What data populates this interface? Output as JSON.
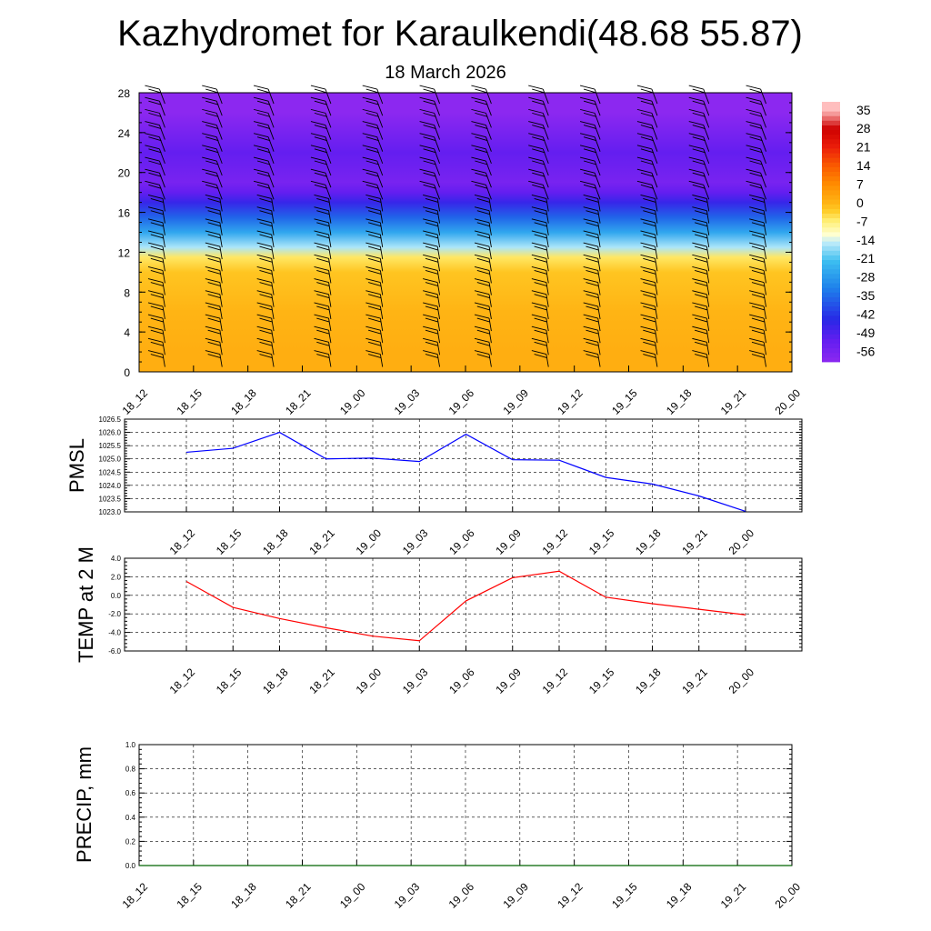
{
  "header": {
    "title": "Kazhydromet for Karaulkendi(48.68 55.87)",
    "subtitle": "18 March 2026"
  },
  "colors": {
    "pmsl_line": "#0000ff",
    "temp_line": "#ff0000",
    "precip_line": "#006400",
    "grid": "#000000",
    "barb": "#000000"
  },
  "time_labels": [
    "18_12",
    "18_15",
    "18_18",
    "18_21",
    "19_00",
    "19_03",
    "19_06",
    "19_09",
    "19_12",
    "19_15",
    "19_18",
    "19_21",
    "20_00"
  ],
  "chart_data": [
    {
      "id": "cross_section",
      "type": "heatmap",
      "x": [
        "18_12",
        "18_15",
        "18_18",
        "18_21",
        "19_00",
        "19_03",
        "19_06",
        "19_09",
        "19_12",
        "19_15",
        "19_18",
        "19_21",
        "20_00"
      ],
      "y_ticks": [
        0,
        4,
        8,
        12,
        16,
        20,
        24,
        28
      ],
      "ylim": [
        0,
        28
      ],
      "colorbar_labels": [
        "35",
        "28",
        "21",
        "14",
        "7",
        "0",
        "-7",
        "-14",
        "-21",
        "-28",
        "-35",
        "-42",
        "-49",
        "-56"
      ],
      "colorbar_range": [
        -60,
        38
      ],
      "temperature_profile": [
        {
          "level": 0,
          "value": 1
        },
        {
          "level": 2,
          "value": 1
        },
        {
          "level": 6,
          "value": 0
        },
        {
          "level": 10,
          "value": -2
        },
        {
          "level": 11.5,
          "value": -6
        },
        {
          "level": 12.5,
          "value": -16
        },
        {
          "level": 14,
          "value": -26
        },
        {
          "level": 15.5,
          "value": -36
        },
        {
          "level": 17,
          "value": -46
        },
        {
          "level": 18,
          "value": -52
        },
        {
          "level": 19,
          "value": -56
        },
        {
          "level": 22,
          "value": -52
        },
        {
          "level": 24,
          "value": -56
        },
        {
          "level": 26,
          "value": -60
        },
        {
          "level": 28,
          "value": -60
        }
      ],
      "wind_barbs": "westerly to northwesterly at all levels"
    },
    {
      "id": "pmsl",
      "type": "line",
      "ylabel": "PMSL",
      "x": [
        "18_12",
        "18_15",
        "18_18",
        "18_21",
        "19_00",
        "19_03",
        "19_06",
        "19_09",
        "19_12",
        "19_15",
        "19_18",
        "19_21",
        "20_00"
      ],
      "ylim": [
        1023.0,
        1026.5
      ],
      "y_ticks": [
        "1023.0",
        "1023.5",
        "1024.0",
        "1024.5",
        "1025.0",
        "1025.5",
        "1026.0",
        "1026.5"
      ],
      "series": [
        {
          "values": [
            1025.25,
            1025.4,
            1026.0,
            1025.0,
            1025.03,
            1024.9,
            1025.93,
            1024.97,
            1024.95,
            1024.3,
            1024.05,
            1023.6,
            1023.02
          ]
        }
      ]
    },
    {
      "id": "temp",
      "type": "line",
      "ylabel": "TEMP at 2 M",
      "x": [
        "18_12",
        "18_15",
        "18_18",
        "18_21",
        "19_00",
        "19_03",
        "19_06",
        "19_09",
        "19_12",
        "19_15",
        "19_18",
        "19_21",
        "20_00"
      ],
      "ylim": [
        -6.0,
        4.0
      ],
      "y_ticks": [
        "-6.0",
        "-4.0",
        "-2.0",
        "0.0",
        "2.0",
        "4.0"
      ],
      "series": [
        {
          "values": [
            1.5,
            -1.3,
            -2.5,
            -3.5,
            -4.4,
            -4.9,
            -0.6,
            1.9,
            2.6,
            -0.2,
            -0.9,
            -1.5,
            -2.1
          ]
        }
      ]
    },
    {
      "id": "precip",
      "type": "line",
      "ylabel": "PRECIP, mm",
      "x": [
        "18_12",
        "18_15",
        "18_18",
        "18_21",
        "19_00",
        "19_03",
        "19_06",
        "19_09",
        "19_12",
        "19_15",
        "19_18",
        "19_21",
        "20_00"
      ],
      "ylim": [
        0.0,
        1.0
      ],
      "y_ticks": [
        "0.0",
        "0.2",
        "0.4",
        "0.6",
        "0.8",
        "1.0"
      ],
      "series": [
        {
          "values": [
            0,
            0,
            0,
            0,
            0,
            0,
            0,
            0,
            0,
            0,
            0,
            0,
            0
          ]
        }
      ]
    }
  ]
}
